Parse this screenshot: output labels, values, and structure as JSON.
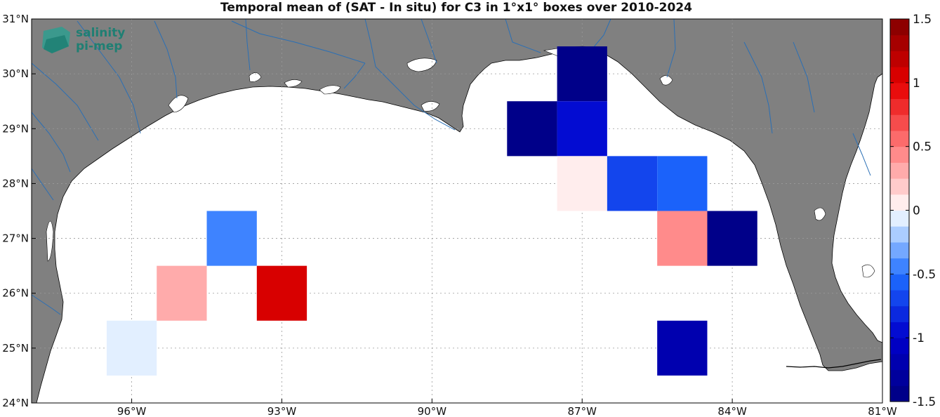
{
  "title": "Temporal mean of (SAT - In situ) for C3 in 1°x1° boxes over 2010-2024",
  "logo": {
    "line1": "salinity",
    "line2": "pi-mep"
  },
  "colors": {
    "land": "#808080",
    "ocean": "#ffffff",
    "rivers": "#2a6fb5",
    "grid": "#9a9a9a"
  },
  "chart_data": {
    "type": "heatmap",
    "xlim": [
      -98,
      -81
    ],
    "ylim": [
      24,
      31
    ],
    "x_ticks": [
      {
        "value": -96,
        "label": "96°W"
      },
      {
        "value": -93,
        "label": "93°W"
      },
      {
        "value": -90,
        "label": "90°W"
      },
      {
        "value": -87,
        "label": "87°W"
      },
      {
        "value": -84,
        "label": "84°W"
      },
      {
        "value": -81,
        "label": "81°W"
      }
    ],
    "y_ticks": [
      {
        "value": 24,
        "label": "24°N"
      },
      {
        "value": 25,
        "label": "25°N"
      },
      {
        "value": 26,
        "label": "26°N"
      },
      {
        "value": 27,
        "label": "27°N"
      },
      {
        "value": 28,
        "label": "28°N"
      },
      {
        "value": 29,
        "label": "29°N"
      },
      {
        "value": 30,
        "label": "30°N"
      },
      {
        "value": 31,
        "label": "31°N"
      }
    ],
    "colorbar": {
      "range": [
        -1.5,
        1.5
      ],
      "levels": 24,
      "ticks": [
        {
          "value": 1.5,
          "label": "1.5"
        },
        {
          "value": 1,
          "label": "1"
        },
        {
          "value": 0.5,
          "label": "0.5"
        },
        {
          "value": 0,
          "label": "0"
        },
        {
          "value": -0.5,
          "label": "-0.5"
        },
        {
          "value": -1,
          "label": "-1"
        },
        {
          "value": -1.5,
          "label": "-1.5"
        }
      ]
    },
    "cells": [
      {
        "lon": -87,
        "lat": 30,
        "value": -1.4
      },
      {
        "lon": -88,
        "lat": 29,
        "value": -1.5
      },
      {
        "lon": -87,
        "lat": 29,
        "value": -1.0
      },
      {
        "lon": -87,
        "lat": 28,
        "value": 0.1
      },
      {
        "lon": -86,
        "lat": 28,
        "value": -0.7
      },
      {
        "lon": -85,
        "lat": 28,
        "value": -0.55
      },
      {
        "lon": -85,
        "lat": 27,
        "value": 0.45
      },
      {
        "lon": -84,
        "lat": 27,
        "value": -1.5
      },
      {
        "lon": -94,
        "lat": 27,
        "value": -0.4
      },
      {
        "lon": -95,
        "lat": 26,
        "value": 0.25
      },
      {
        "lon": -93,
        "lat": 26,
        "value": 1.05
      },
      {
        "lon": -96,
        "lat": 25,
        "value": -0.1
      },
      {
        "lon": -85,
        "lat": 25,
        "value": -1.2
      }
    ]
  }
}
